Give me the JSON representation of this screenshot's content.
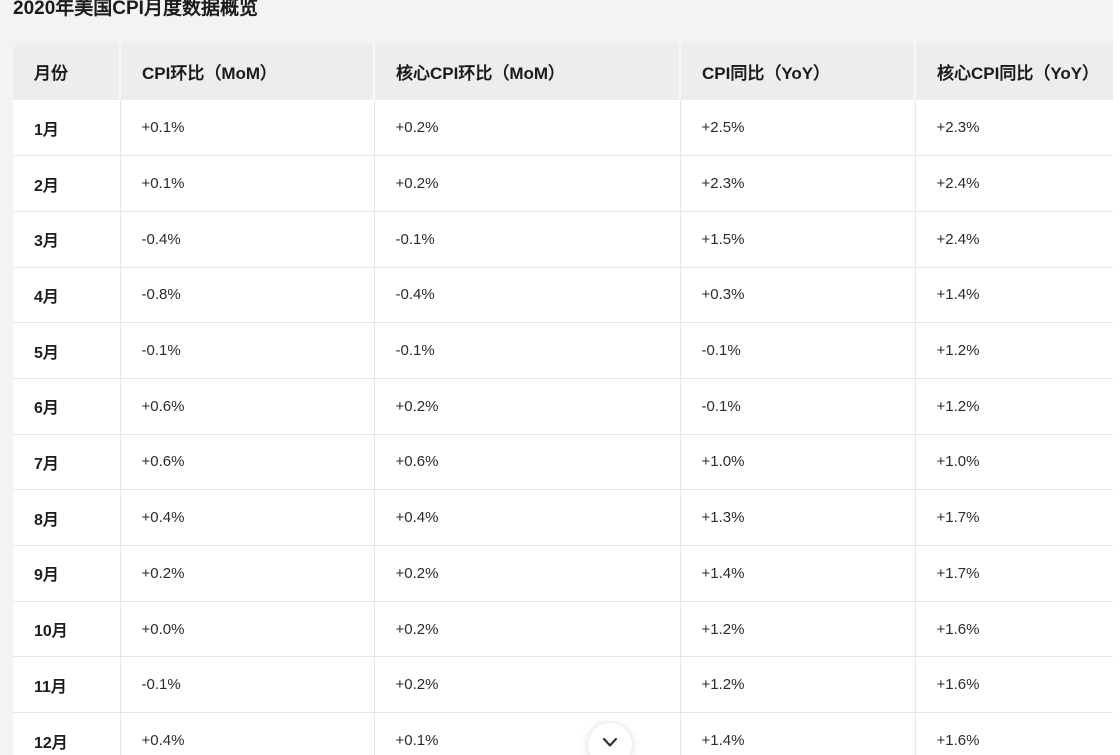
{
  "page": {
    "title": "2020年美国CPI月度数据概览"
  },
  "table": {
    "columns": [
      "月份",
      "CPI环比（MoM）",
      "核心CPI环比（MoM）",
      "CPI同比（YoY）",
      "核心CPI同比（YoY）"
    ],
    "rows": [
      [
        "1月",
        "+0.1%",
        "+0.2%",
        "+2.5%",
        "+2.3%"
      ],
      [
        "2月",
        "+0.1%",
        "+0.2%",
        "+2.3%",
        "+2.4%"
      ],
      [
        "3月",
        "-0.4%",
        "-0.1%",
        "+1.5%",
        "+2.4%"
      ],
      [
        "4月",
        "-0.8%",
        "-0.4%",
        "+0.3%",
        "+1.4%"
      ],
      [
        "5月",
        "-0.1%",
        "-0.1%",
        "-0.1%",
        "+1.2%"
      ],
      [
        "6月",
        "+0.6%",
        "+0.2%",
        "-0.1%",
        "+1.2%"
      ],
      [
        "7月",
        "+0.6%",
        "+0.6%",
        "+1.0%",
        "+1.0%"
      ],
      [
        "8月",
        "+0.4%",
        "+0.4%",
        "+1.3%",
        "+1.7%"
      ],
      [
        "9月",
        "+0.2%",
        "+0.2%",
        "+1.4%",
        "+1.7%"
      ],
      [
        "10月",
        "+0.0%",
        "+0.2%",
        "+1.2%",
        "+1.6%"
      ],
      [
        "11月",
        "-0.1%",
        "+0.2%",
        "+1.2%",
        "+1.6%"
      ],
      [
        "12月",
        "+0.4%",
        "+0.1%",
        "+1.4%",
        "+1.6%"
      ]
    ]
  },
  "expand_button": {
    "icon": "chevron-down-icon"
  },
  "colors": {
    "page_background": "#f4f3f1",
    "header_background": "#ededeb",
    "cell_background": "#ffffff",
    "border": "#e7e6e4",
    "text": "#1b1b1b"
  },
  "chart_data": {
    "type": "table",
    "title": "2020年美国CPI月度数据概览",
    "columns": [
      "月份",
      "CPI环比（MoM）",
      "核心CPI环比（MoM）",
      "CPI同比（YoY）",
      "核心CPI同比（YoY）"
    ],
    "categories": [
      "1月",
      "2月",
      "3月",
      "4月",
      "5月",
      "6月",
      "7月",
      "8月",
      "9月",
      "10月",
      "11月",
      "12月"
    ],
    "series": [
      {
        "name": "CPI环比（MoM）",
        "values": [
          0.1,
          0.1,
          -0.4,
          -0.8,
          -0.1,
          0.6,
          0.6,
          0.4,
          0.2,
          0.0,
          -0.1,
          0.4
        ]
      },
      {
        "name": "核心CPI环比（MoM）",
        "values": [
          0.2,
          0.2,
          -0.1,
          -0.4,
          -0.1,
          0.2,
          0.6,
          0.4,
          0.2,
          0.2,
          0.2,
          0.1
        ]
      },
      {
        "name": "CPI同比（YoY）",
        "values": [
          2.5,
          2.3,
          1.5,
          0.3,
          -0.1,
          -0.1,
          1.0,
          1.3,
          1.4,
          1.2,
          1.2,
          1.4
        ]
      },
      {
        "name": "核心CPI同比（YoY）",
        "values": [
          2.3,
          2.4,
          2.4,
          1.4,
          1.2,
          1.2,
          1.0,
          1.7,
          1.7,
          1.6,
          1.6,
          1.6
        ]
      }
    ],
    "unit": "%"
  }
}
